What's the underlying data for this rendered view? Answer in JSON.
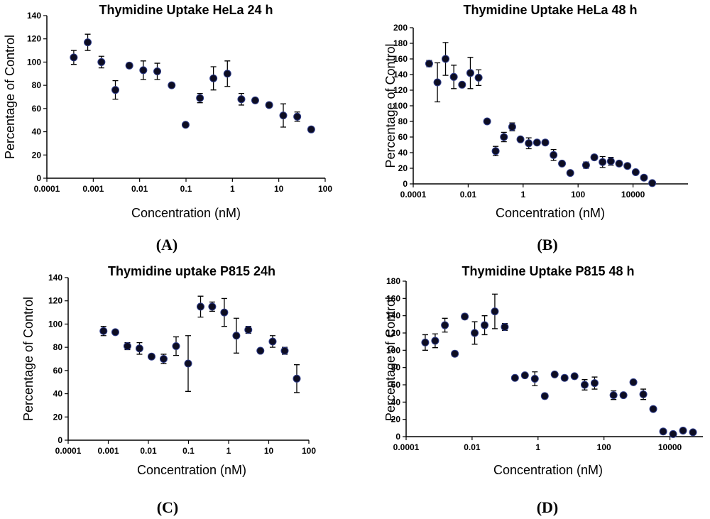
{
  "chart_data": [
    {
      "type": "scatter",
      "title": "Thymidine Uptake HeLa 24 h",
      "xlabel": "Concentration (nM)",
      "ylabel": "Percentage of Control",
      "panel_label": "(A)",
      "xscale": "log",
      "xlim": [
        0.0001,
        100
      ],
      "ylim": [
        0,
        140
      ],
      "x_ticks": [
        "0.0001",
        "0.001",
        "0.01",
        "0.1",
        "1",
        "10",
        "100"
      ],
      "y_ticks": [
        "0",
        "20",
        "40",
        "60",
        "80",
        "100",
        "120",
        "140"
      ],
      "grid": false,
      "points": [
        {
          "x": 0.00038,
          "y": 104,
          "err": 6
        },
        {
          "x": 0.00076,
          "y": 117,
          "err": 7
        },
        {
          "x": 0.0015,
          "y": 100,
          "err": 5
        },
        {
          "x": 0.003,
          "y": 76,
          "err": 8
        },
        {
          "x": 0.006,
          "y": 97,
          "err": 2
        },
        {
          "x": 0.012,
          "y": 93,
          "err": 8
        },
        {
          "x": 0.024,
          "y": 92,
          "err": 7
        },
        {
          "x": 0.049,
          "y": 80,
          "err": 1
        },
        {
          "x": 0.098,
          "y": 46,
          "err": 1
        },
        {
          "x": 0.2,
          "y": 69,
          "err": 4
        },
        {
          "x": 0.39,
          "y": 86,
          "err": 10
        },
        {
          "x": 0.78,
          "y": 90,
          "err": 11
        },
        {
          "x": 1.56,
          "y": 68,
          "err": 5
        },
        {
          "x": 3.1,
          "y": 67,
          "err": 2
        },
        {
          "x": 6.2,
          "y": 63,
          "err": 2
        },
        {
          "x": 12.5,
          "y": 54,
          "err": 10
        },
        {
          "x": 25,
          "y": 53,
          "err": 4
        },
        {
          "x": 50,
          "y": 42,
          "err": 2
        }
      ]
    },
    {
      "type": "scatter",
      "title": "Thymidine Uptake HeLa 48 h",
      "xlabel": "Concentration (nM)",
      "ylabel": "Percentage of Control",
      "panel_label": "(B)",
      "xscale": "log",
      "xlim": [
        0.0001,
        1000000
      ],
      "ylim": [
        0,
        200
      ],
      "x_ticks": [
        "0.0001",
        "0.01",
        "1",
        "100",
        "10000"
      ],
      "y_ticks": [
        "0",
        "20",
        "40",
        "60",
        "80",
        "100",
        "120",
        "140",
        "160",
        "180",
        "200"
      ],
      "grid": false,
      "points": [
        {
          "x": 0.00038,
          "y": 154,
          "err": 4
        },
        {
          "x": 0.00076,
          "y": 130,
          "err": 25
        },
        {
          "x": 0.0015,
          "y": 160,
          "err": 21
        },
        {
          "x": 0.003,
          "y": 137,
          "err": 15
        },
        {
          "x": 0.006,
          "y": 127,
          "err": 0
        },
        {
          "x": 0.012,
          "y": 142,
          "err": 20
        },
        {
          "x": 0.024,
          "y": 136,
          "err": 10
        },
        {
          "x": 0.049,
          "y": 80,
          "err": 0
        },
        {
          "x": 0.1,
          "y": 42,
          "err": 6
        },
        {
          "x": 0.2,
          "y": 60,
          "err": 6
        },
        {
          "x": 0.4,
          "y": 73,
          "err": 5
        },
        {
          "x": 0.8,
          "y": 57,
          "err": 2
        },
        {
          "x": 1.6,
          "y": 52,
          "err": 7
        },
        {
          "x": 3.2,
          "y": 53,
          "err": 2
        },
        {
          "x": 6.4,
          "y": 53,
          "err": 3
        },
        {
          "x": 12.8,
          "y": 37,
          "err": 7
        },
        {
          "x": 26,
          "y": 26,
          "err": 1
        },
        {
          "x": 52,
          "y": 14,
          "err": 1
        },
        {
          "x": 195,
          "y": 24,
          "err": 4
        },
        {
          "x": 390,
          "y": 34,
          "err": 3
        },
        {
          "x": 780,
          "y": 28,
          "err": 7
        },
        {
          "x": 1560,
          "y": 29,
          "err": 5
        },
        {
          "x": 3120,
          "y": 26,
          "err": 1
        },
        {
          "x": 6250,
          "y": 23,
          "err": 3
        },
        {
          "x": 12500,
          "y": 15,
          "err": 1
        },
        {
          "x": 25000,
          "y": 8,
          "err": 1
        },
        {
          "x": 50000,
          "y": 1,
          "err": 1
        }
      ]
    },
    {
      "type": "scatter",
      "title": "Thymidine uptake P815 24h",
      "xlabel": "Concentration (nM)",
      "ylabel": "Percentage of Control",
      "panel_label": "(C)",
      "xscale": "log",
      "xlim": [
        0.0001,
        100
      ],
      "ylim": [
        0,
        140
      ],
      "x_ticks": [
        "0.0001",
        "0.001",
        "0.01",
        "0.1",
        "1",
        "10",
        "100"
      ],
      "y_ticks": [
        "0",
        "20",
        "40",
        "60",
        "80",
        "100",
        "120",
        "140"
      ],
      "grid": false,
      "points": [
        {
          "x": 0.00076,
          "y": 94,
          "err": 4
        },
        {
          "x": 0.0015,
          "y": 93,
          "err": 1
        },
        {
          "x": 0.003,
          "y": 81,
          "err": 3
        },
        {
          "x": 0.006,
          "y": 79,
          "err": 5
        },
        {
          "x": 0.012,
          "y": 72,
          "err": 2
        },
        {
          "x": 0.024,
          "y": 70,
          "err": 4
        },
        {
          "x": 0.049,
          "y": 81,
          "err": 8
        },
        {
          "x": 0.098,
          "y": 66,
          "err": 24
        },
        {
          "x": 0.2,
          "y": 115,
          "err": 9
        },
        {
          "x": 0.39,
          "y": 115,
          "err": 4
        },
        {
          "x": 0.78,
          "y": 110,
          "err": 12
        },
        {
          "x": 1.56,
          "y": 90,
          "err": 15
        },
        {
          "x": 3.1,
          "y": 95,
          "err": 3
        },
        {
          "x": 6.2,
          "y": 77,
          "err": 1
        },
        {
          "x": 12.5,
          "y": 85,
          "err": 5
        },
        {
          "x": 25,
          "y": 77,
          "err": 3
        },
        {
          "x": 50,
          "y": 53,
          "err": 12
        }
      ]
    },
    {
      "type": "scatter",
      "title": "Thymidine Uptake P815 48 h",
      "xlabel": "Concentration (nM)",
      "ylabel": "Percentage of Control",
      "panel_label": "(D)",
      "xscale": "log",
      "xlim": [
        0.0001,
        100000
      ],
      "ylim": [
        0,
        180
      ],
      "x_ticks": [
        "0.0001",
        "0.01",
        "1",
        "100",
        "10000"
      ],
      "y_ticks": [
        "0",
        "20",
        "40",
        "60",
        "80",
        "100",
        "120",
        "140",
        "160",
        "180"
      ],
      "grid": false,
      "points": [
        {
          "x": 0.00038,
          "y": 109,
          "err": 9
        },
        {
          "x": 0.00076,
          "y": 111,
          "err": 8
        },
        {
          "x": 0.0015,
          "y": 129,
          "err": 8
        },
        {
          "x": 0.003,
          "y": 96,
          "err": 3
        },
        {
          "x": 0.006,
          "y": 139,
          "err": 3
        },
        {
          "x": 0.012,
          "y": 120,
          "err": 13
        },
        {
          "x": 0.024,
          "y": 129,
          "err": 11
        },
        {
          "x": 0.049,
          "y": 145,
          "err": 20
        },
        {
          "x": 0.098,
          "y": 127,
          "err": 4
        },
        {
          "x": 0.2,
          "y": 68,
          "err": 2
        },
        {
          "x": 0.4,
          "y": 71,
          "err": 1
        },
        {
          "x": 0.8,
          "y": 67,
          "err": 8
        },
        {
          "x": 1.6,
          "y": 47,
          "err": 3
        },
        {
          "x": 3.2,
          "y": 72,
          "err": 1
        },
        {
          "x": 6.4,
          "y": 68,
          "err": 3
        },
        {
          "x": 12.8,
          "y": 70,
          "err": 1
        },
        {
          "x": 26,
          "y": 60,
          "err": 6
        },
        {
          "x": 52,
          "y": 62,
          "err": 7
        },
        {
          "x": 195,
          "y": 48,
          "err": 5
        },
        {
          "x": 390,
          "y": 48,
          "err": 1
        },
        {
          "x": 780,
          "y": 63,
          "err": 2
        },
        {
          "x": 1560,
          "y": 49,
          "err": 6
        },
        {
          "x": 3120,
          "y": 32,
          "err": 2
        },
        {
          "x": 6250,
          "y": 6,
          "err": 1
        },
        {
          "x": 12500,
          "y": 3,
          "err": 1
        },
        {
          "x": 25000,
          "y": 7,
          "err": 1
        },
        {
          "x": 50000,
          "y": 5,
          "err": 1
        }
      ]
    }
  ]
}
